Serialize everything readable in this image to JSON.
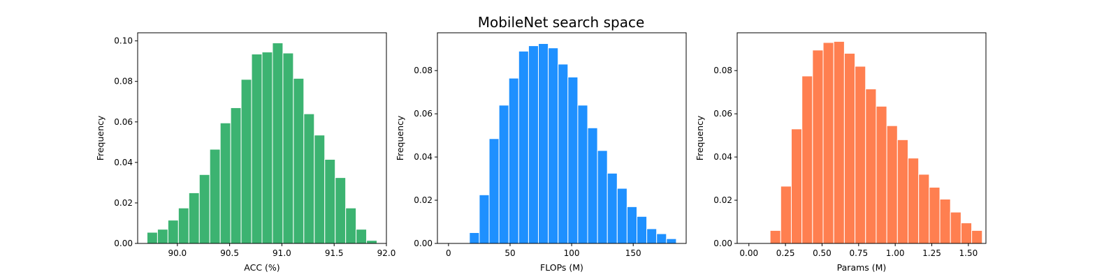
{
  "figure": {
    "title": "MobileNet search space"
  },
  "chart_data": [
    {
      "type": "bar",
      "title": "",
      "xlabel": "ACC (%)",
      "ylabel": "Frequency",
      "color": "#3cb371",
      "xlim": [
        89.62,
        92.0
      ],
      "ylim": [
        0.0,
        0.104
      ],
      "xticks": [
        {
          "value": 90.0,
          "label": "90.0"
        },
        {
          "value": 90.5,
          "label": "90.5"
        },
        {
          "value": 91.0,
          "label": "91.0"
        },
        {
          "value": 91.5,
          "label": "91.5"
        },
        {
          "value": 92.0,
          "label": "92.0"
        }
      ],
      "yticks": [
        {
          "value": 0.0,
          "label": "0.00"
        },
        {
          "value": 0.02,
          "label": "0.02"
        },
        {
          "value": 0.04,
          "label": "0.04"
        },
        {
          "value": 0.06,
          "label": "0.06"
        },
        {
          "value": 0.08,
          "label": "0.08"
        },
        {
          "value": 0.1,
          "label": "0.10"
        }
      ],
      "bin_start": 89.71,
      "bin_width": 0.1,
      "values": [
        0.0055,
        0.007,
        0.0115,
        0.0175,
        0.025,
        0.034,
        0.0465,
        0.0595,
        0.067,
        0.081,
        0.0935,
        0.0945,
        0.099,
        0.094,
        0.0815,
        0.064,
        0.0535,
        0.0415,
        0.0325,
        0.0175,
        0.007,
        0.0015,
        0.0003
      ]
    },
    {
      "type": "bar",
      "title": "",
      "xlabel": "FLOPs (M)",
      "ylabel": "Frequency",
      "color": "#1e90ff",
      "xlim": [
        -9,
        193
      ],
      "ylim": [
        0.0,
        0.0975
      ],
      "xticks": [
        {
          "value": 0,
          "label": "0"
        },
        {
          "value": 50,
          "label": "50"
        },
        {
          "value": 100,
          "label": "100"
        },
        {
          "value": 150,
          "label": "150"
        }
      ],
      "yticks": [
        {
          "value": 0.0,
          "label": "0.00"
        },
        {
          "value": 0.02,
          "label": "0.02"
        },
        {
          "value": 0.04,
          "label": "0.04"
        },
        {
          "value": 0.06,
          "label": "0.06"
        },
        {
          "value": 0.08,
          "label": "0.08"
        }
      ],
      "bin_start": 17,
      "bin_width": 8,
      "values": [
        0.005,
        0.0225,
        0.0485,
        0.064,
        0.0765,
        0.089,
        0.0915,
        0.0925,
        0.0905,
        0.083,
        0.077,
        0.064,
        0.0535,
        0.043,
        0.0325,
        0.0255,
        0.017,
        0.0125,
        0.0068,
        0.0045,
        0.0022
      ]
    },
    {
      "type": "bar",
      "title": "",
      "xlabel": "Params (M)",
      "ylabel": "Frequency",
      "color": "#ff7f50",
      "xlim": [
        -0.08,
        1.62
      ],
      "ylim": [
        0.0,
        0.0975
      ],
      "xticks": [
        {
          "value": 0.0,
          "label": "0.00"
        },
        {
          "value": 0.25,
          "label": "0.25"
        },
        {
          "value": 0.5,
          "label": "0.50"
        },
        {
          "value": 0.75,
          "label": "0.75"
        },
        {
          "value": 1.0,
          "label": "1.00"
        },
        {
          "value": 1.25,
          "label": "1.25"
        },
        {
          "value": 1.5,
          "label": "1.50"
        }
      ],
      "yticks": [
        {
          "value": 0.0,
          "label": "0.00"
        },
        {
          "value": 0.02,
          "label": "0.02"
        },
        {
          "value": 0.04,
          "label": "0.04"
        },
        {
          "value": 0.06,
          "label": "0.06"
        },
        {
          "value": 0.08,
          "label": "0.08"
        }
      ],
      "bin_start": 0.145,
      "bin_width": 0.0725,
      "values": [
        0.006,
        0.0265,
        0.053,
        0.0775,
        0.0895,
        0.093,
        0.0935,
        0.088,
        0.082,
        0.0715,
        0.0635,
        0.0545,
        0.048,
        0.0395,
        0.032,
        0.026,
        0.0205,
        0.0145,
        0.0095,
        0.006
      ]
    }
  ]
}
